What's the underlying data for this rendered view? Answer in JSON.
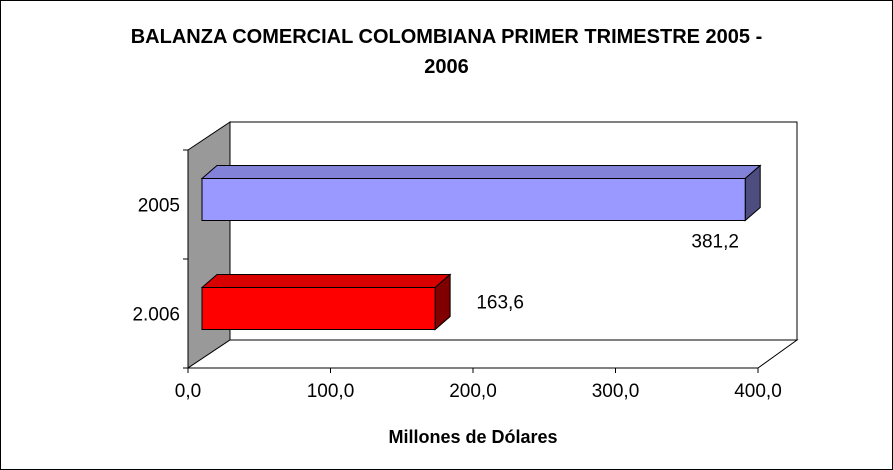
{
  "chart_data": {
    "type": "bar3d_horizontal",
    "title": "BALANZA COMERCIAL COLOMBIANA PRIMER TRIMESTRE 2005 - 2006",
    "categories": [
      "2005",
      "2.006"
    ],
    "values": [
      381.2,
      163.6
    ],
    "value_labels": [
      "381,2",
      "163,6"
    ],
    "colors": [
      "#9999ff",
      "#ff0000"
    ],
    "xlim": [
      0,
      400
    ],
    "xticks": [
      {
        "value": 0,
        "label": "0,0"
      },
      {
        "value": 100,
        "label": "100,0"
      },
      {
        "value": 200,
        "label": "200,0"
      },
      {
        "value": 300,
        "label": "300,0"
      },
      {
        "value": 400,
        "label": "400,0"
      }
    ],
    "xlabel": "Millones de Dólares"
  }
}
